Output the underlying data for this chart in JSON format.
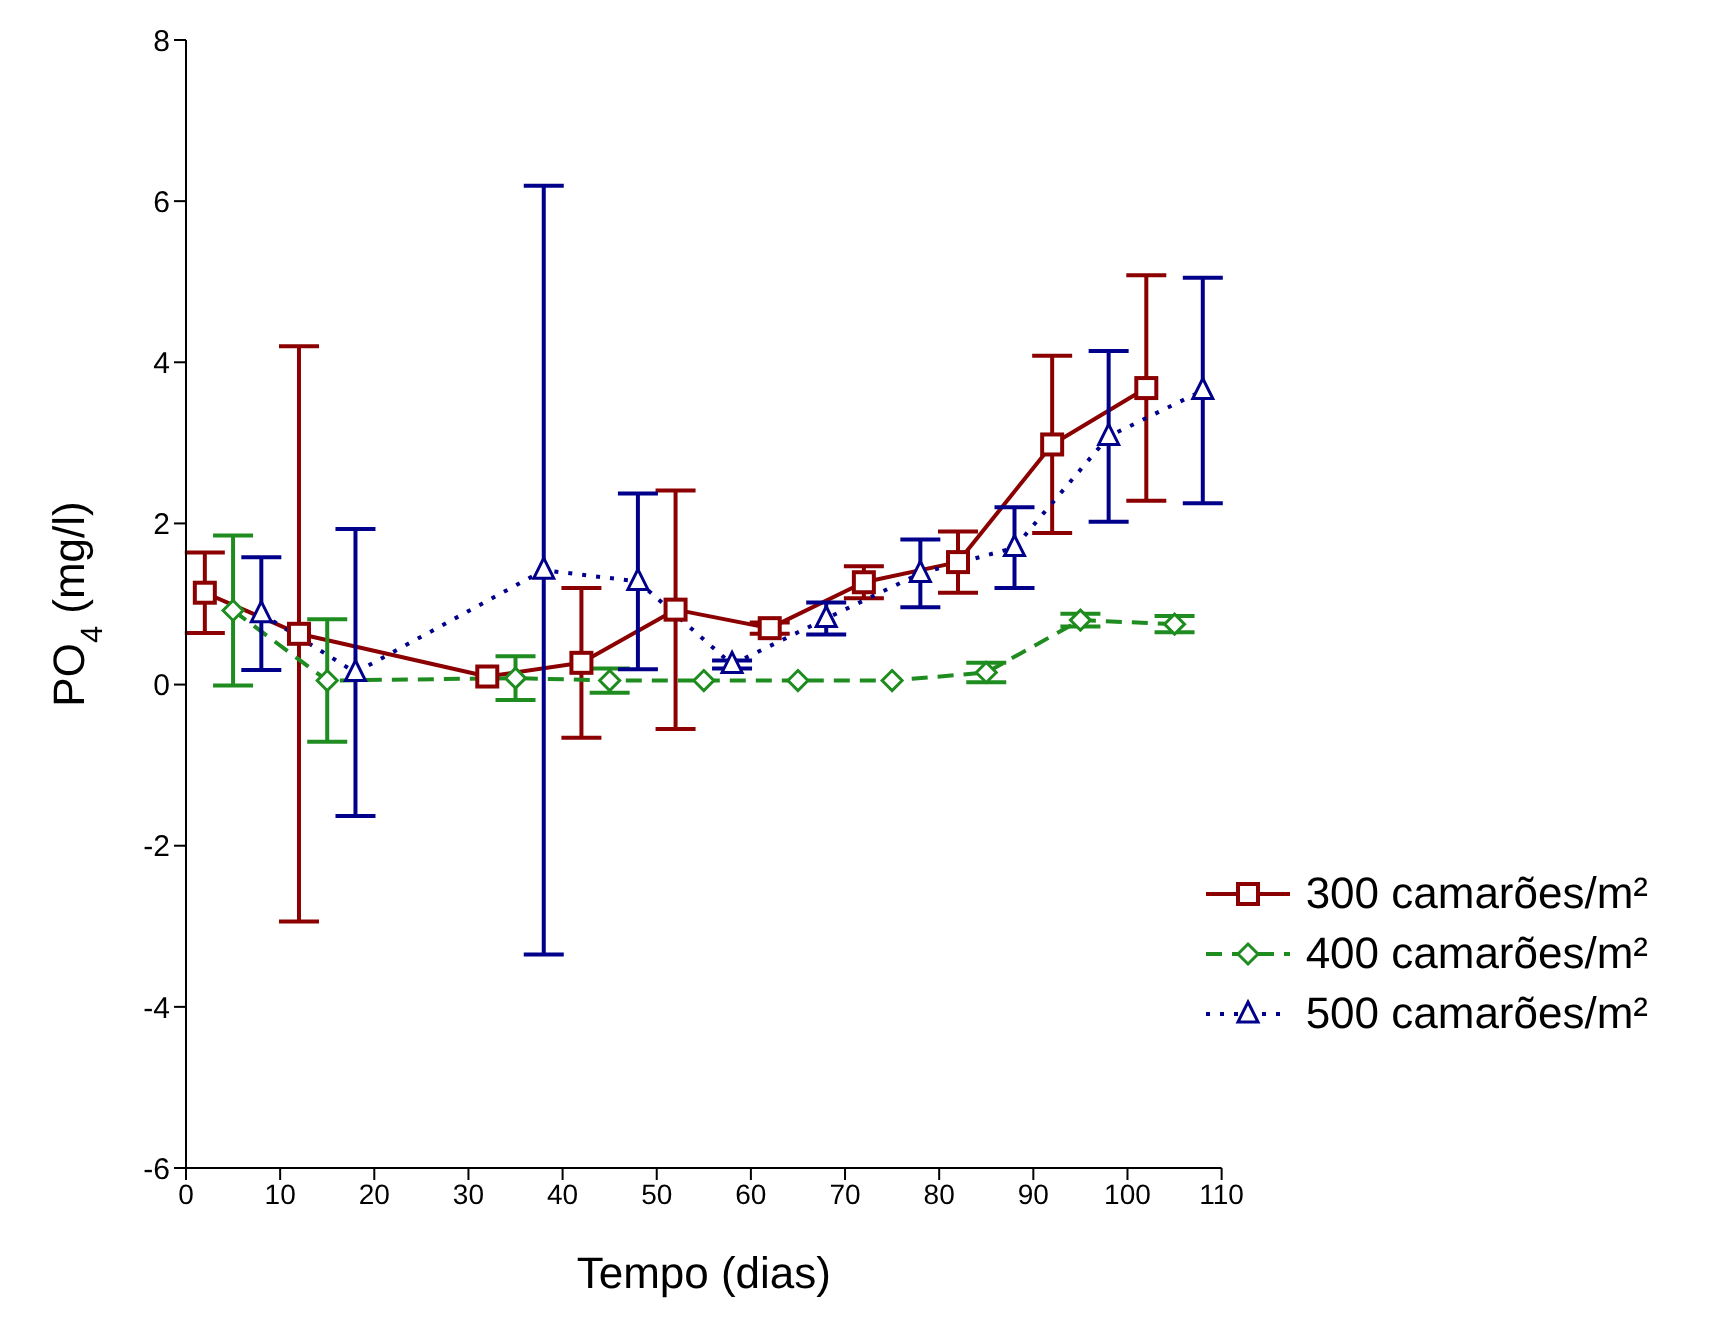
{
  "chart_data": {
    "type": "line",
    "xlabel": "Tempo (dias)",
    "ylabel": "PO$_{4}$ (mg/l)",
    "xlim": [
      0,
      110
    ],
    "xticks": [
      0,
      10,
      20,
      30,
      40,
      50,
      60,
      70,
      80,
      90,
      100,
      110
    ],
    "ylim": [
      -6,
      8
    ],
    "yticks": [
      -6,
      -4,
      -2,
      0,
      2,
      4,
      6,
      8
    ],
    "grid": false,
    "legend": "bottom right",
    "series": [
      {
        "name": "300 camarões/m²",
        "color": "#8b0000",
        "marker": "square",
        "line_style": "solid",
        "x": [
          2,
          12,
          32,
          42,
          52,
          62,
          72,
          82,
          92,
          102
        ],
        "values": [
          1.14,
          0.63,
          0.1,
          0.27,
          0.93,
          0.7,
          1.27,
          1.52,
          2.98,
          3.68
        ],
        "errors": [
          0.5,
          3.57,
          null,
          0.93,
          1.48,
          0.07,
          0.2,
          0.38,
          1.1,
          1.4
        ]
      },
      {
        "name": "400 camarões/m²",
        "color": "#1e8c1e",
        "marker": "diamond",
        "line_style": "dashed",
        "x": [
          5,
          15,
          35,
          45,
          55,
          65,
          75,
          85,
          95,
          105
        ],
        "values": [
          0.92,
          0.05,
          0.08,
          0.05,
          0.05,
          0.05,
          0.05,
          0.15,
          0.8,
          0.75
        ],
        "errors": [
          0.93,
          0.76,
          0.27,
          0.15,
          null,
          null,
          null,
          0.12,
          0.08,
          0.1
        ]
      },
      {
        "name": "500 camarões/m²",
        "color": "#00008b",
        "marker": "triangle",
        "line_style": "dotted",
        "x": [
          8,
          18,
          38,
          48,
          58,
          68,
          78,
          88,
          98,
          108
        ],
        "values": [
          0.88,
          0.15,
          1.42,
          1.28,
          0.25,
          0.82,
          1.38,
          1.7,
          3.08,
          3.65
        ],
        "errors": [
          0.7,
          1.78,
          4.77,
          1.09,
          0.05,
          0.2,
          0.42,
          0.5,
          1.06,
          1.4
        ]
      }
    ]
  }
}
